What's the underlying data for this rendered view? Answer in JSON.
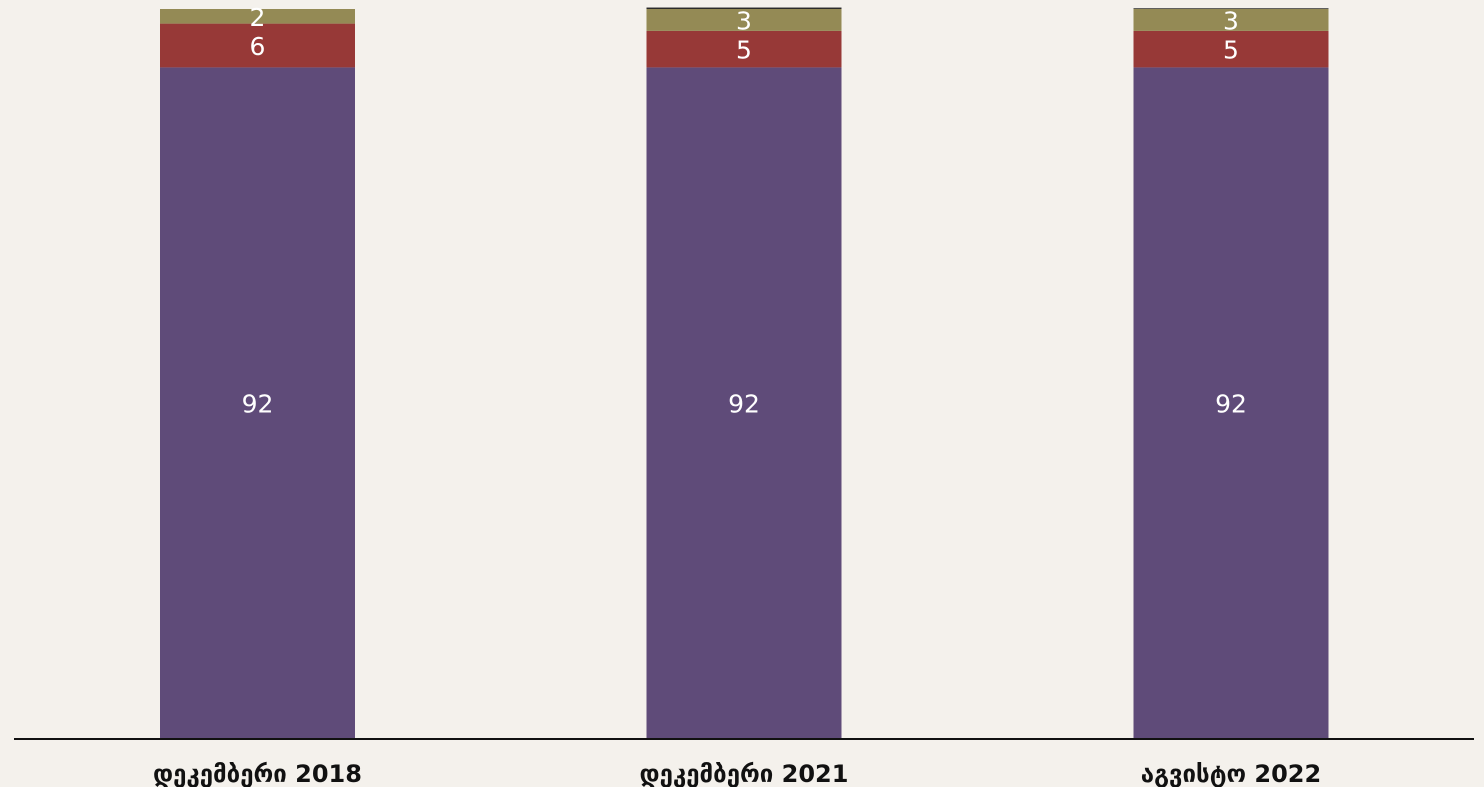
{
  "chart_data": {
    "type": "bar",
    "stacked": true,
    "orientation": "vertical",
    "categories": [
      "დეკემბერი 2018",
      "დეკემბერი 2021",
      "აგვისტო 2022"
    ],
    "series": [
      {
        "values": [
          92,
          92,
          92
        ],
        "color": "#5f4b79"
      },
      {
        "values": [
          6,
          5,
          5
        ],
        "color": "#973937"
      },
      {
        "values": [
          2,
          3,
          3
        ],
        "color": "#948a55"
      },
      {
        "values": [
          0,
          0.2,
          0.1
        ],
        "color": "#2b2b2b"
      }
    ],
    "value_labels": [
      [
        "92",
        "92",
        "92"
      ],
      [
        "6",
        "5",
        "5"
      ],
      [
        "2",
        "3",
        "3"
      ],
      [
        "",
        "",
        ""
      ]
    ],
    "ylim": [
      0,
      100
    ],
    "grid": false,
    "legend": "none"
  }
}
